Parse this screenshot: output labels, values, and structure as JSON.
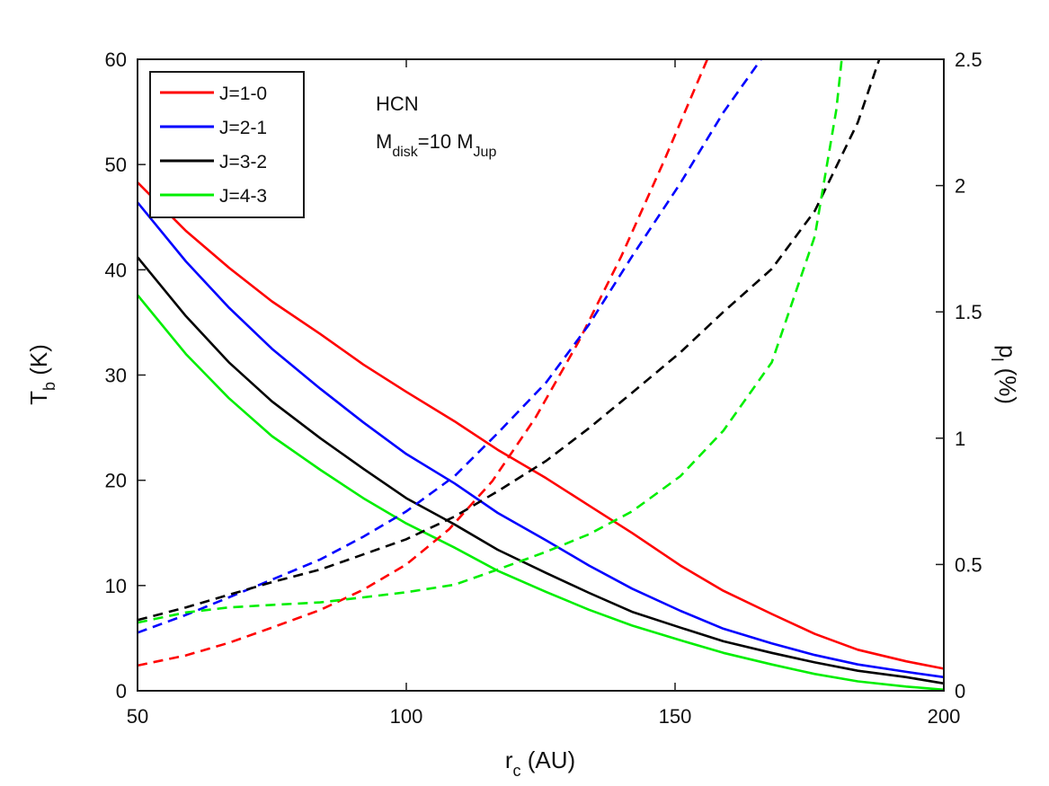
{
  "chart_data": {
    "type": "line",
    "title": "",
    "annotation": {
      "line1": "HCN",
      "line2": {
        "base": "M",
        "sub": "disk",
        "mid": "=10 M",
        "sub2": "Jup"
      }
    },
    "xlabel": {
      "base": "r",
      "sub": "c",
      "rest": " (AU)"
    },
    "ylabel_left": {
      "base": "T",
      "sub": "b",
      "rest": " (K)"
    },
    "ylabel_right": {
      "base": "p",
      "sub": "l",
      "rest": " (%)"
    },
    "xlim": [
      50,
      200
    ],
    "ylim_left": [
      0,
      60
    ],
    "ylim_right": [
      0,
      2.5
    ],
    "x_ticks": [
      50,
      100,
      150,
      200
    ],
    "y_left_ticks": [
      0,
      10,
      20,
      30,
      40,
      50,
      60
    ],
    "y_right_ticks": [
      "0",
      "0.5",
      "1",
      "1.5",
      "2",
      "2.5"
    ],
    "y_right_tick_values": [
      0,
      0.5,
      1,
      1.5,
      2,
      2.5
    ],
    "legend_position": "top-left",
    "series": [
      {
        "name": "J=1-0",
        "color": "#ff0000",
        "tb": [
          [
            50,
            48.3
          ],
          [
            59,
            43.7
          ],
          [
            67,
            40.2
          ],
          [
            75,
            37.0
          ],
          [
            84,
            33.9
          ],
          [
            92,
            31.0
          ],
          [
            100,
            28.4
          ],
          [
            109,
            25.6
          ],
          [
            117,
            22.9
          ],
          [
            126,
            20.2
          ],
          [
            134,
            17.6
          ],
          [
            142,
            15.0
          ],
          [
            151,
            11.9
          ],
          [
            159,
            9.5
          ],
          [
            168,
            7.3
          ],
          [
            176,
            5.4
          ],
          [
            184,
            3.9
          ],
          [
            193,
            2.8
          ],
          [
            200,
            2.1
          ]
        ],
        "pl": [
          [
            50,
            0.1
          ],
          [
            59,
            0.14
          ],
          [
            67,
            0.19
          ],
          [
            75,
            0.25
          ],
          [
            84,
            0.32
          ],
          [
            92,
            0.4
          ],
          [
            100,
            0.5
          ],
          [
            108,
            0.64
          ],
          [
            116,
            0.83
          ],
          [
            124,
            1.08
          ],
          [
            132,
            1.38
          ],
          [
            140,
            1.72
          ],
          [
            148,
            2.1
          ],
          [
            154,
            2.4
          ],
          [
            156,
            2.5
          ]
        ]
      },
      {
        "name": "J=2-1",
        "color": "#0000ff",
        "tb": [
          [
            50,
            46.4
          ],
          [
            59,
            40.8
          ],
          [
            67,
            36.4
          ],
          [
            75,
            32.5
          ],
          [
            84,
            28.7
          ],
          [
            92,
            25.5
          ],
          [
            100,
            22.5
          ],
          [
            109,
            19.7
          ],
          [
            117,
            16.9
          ],
          [
            126,
            14.3
          ],
          [
            134,
            11.9
          ],
          [
            142,
            9.7
          ],
          [
            151,
            7.6
          ],
          [
            159,
            5.9
          ],
          [
            168,
            4.5
          ],
          [
            176,
            3.4
          ],
          [
            184,
            2.5
          ],
          [
            193,
            1.8
          ],
          [
            200,
            1.3
          ]
        ],
        "pl": [
          [
            50,
            0.23
          ],
          [
            59,
            0.3
          ],
          [
            67,
            0.37
          ],
          [
            75,
            0.44
          ],
          [
            84,
            0.52
          ],
          [
            92,
            0.61
          ],
          [
            100,
            0.71
          ],
          [
            109,
            0.85
          ],
          [
            117,
            1.02
          ],
          [
            126,
            1.22
          ],
          [
            134,
            1.45
          ],
          [
            142,
            1.72
          ],
          [
            151,
            2.01
          ],
          [
            159,
            2.29
          ],
          [
            166,
            2.5
          ]
        ]
      },
      {
        "name": "J=3-2",
        "color": "#000000",
        "tb": [
          [
            50,
            41.2
          ],
          [
            59,
            35.6
          ],
          [
            67,
            31.2
          ],
          [
            75,
            27.5
          ],
          [
            84,
            24.0
          ],
          [
            92,
            21.1
          ],
          [
            100,
            18.3
          ],
          [
            109,
            15.8
          ],
          [
            117,
            13.4
          ],
          [
            126,
            11.2
          ],
          [
            134,
            9.3
          ],
          [
            142,
            7.5
          ],
          [
            151,
            6.0
          ],
          [
            159,
            4.7
          ],
          [
            168,
            3.6
          ],
          [
            176,
            2.7
          ],
          [
            184,
            1.9
          ],
          [
            193,
            1.3
          ],
          [
            200,
            0.7
          ]
        ],
        "pl": [
          [
            50,
            0.28
          ],
          [
            59,
            0.33
          ],
          [
            67,
            0.38
          ],
          [
            75,
            0.43
          ],
          [
            84,
            0.48
          ],
          [
            92,
            0.54
          ],
          [
            100,
            0.6
          ],
          [
            109,
            0.69
          ],
          [
            117,
            0.79
          ],
          [
            126,
            0.91
          ],
          [
            134,
            1.04
          ],
          [
            142,
            1.18
          ],
          [
            151,
            1.34
          ],
          [
            159,
            1.5
          ],
          [
            168,
            1.67
          ],
          [
            176,
            1.9
          ],
          [
            184,
            2.25
          ],
          [
            188,
            2.5
          ]
        ]
      },
      {
        "name": "J=4-3",
        "color": "#00ee00",
        "tb": [
          [
            50,
            37.6
          ],
          [
            59,
            32.0
          ],
          [
            67,
            27.8
          ],
          [
            75,
            24.2
          ],
          [
            84,
            21.0
          ],
          [
            92,
            18.3
          ],
          [
            100,
            15.9
          ],
          [
            109,
            13.6
          ],
          [
            117,
            11.4
          ],
          [
            126,
            9.4
          ],
          [
            134,
            7.7
          ],
          [
            142,
            6.2
          ],
          [
            151,
            4.8
          ],
          [
            159,
            3.6
          ],
          [
            168,
            2.5
          ],
          [
            176,
            1.6
          ],
          [
            184,
            0.9
          ],
          [
            193,
            0.4
          ],
          [
            200,
            0.1
          ]
        ],
        "pl": [
          [
            50,
            0.27
          ],
          [
            59,
            0.31
          ],
          [
            67,
            0.33
          ],
          [
            75,
            0.34
          ],
          [
            84,
            0.35
          ],
          [
            92,
            0.37
          ],
          [
            100,
            0.39
          ],
          [
            109,
            0.42
          ],
          [
            117,
            0.48
          ],
          [
            126,
            0.55
          ],
          [
            134,
            0.62
          ],
          [
            142,
            0.71
          ],
          [
            151,
            0.85
          ],
          [
            159,
            1.03
          ],
          [
            168,
            1.3
          ],
          [
            176,
            1.8
          ],
          [
            180,
            2.3
          ],
          [
            181,
            2.5
          ]
        ]
      }
    ]
  }
}
